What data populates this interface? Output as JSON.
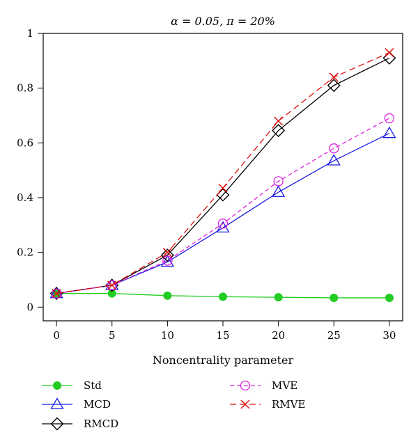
{
  "chart_data": {
    "type": "line",
    "title": "α = 0.05, π = 20%",
    "xlabel": "Noncentrality parameter",
    "ylabel": "",
    "x": [
      0,
      5,
      10,
      15,
      20,
      25,
      30
    ],
    "xlim": [
      -1.2,
      31.2
    ],
    "ylim": [
      -0.05,
      1.0
    ],
    "xticks": [
      "0",
      "5",
      "10",
      "15",
      "20",
      "25",
      "30"
    ],
    "yticks": [
      "0",
      "0.2",
      "0.4",
      "0.6",
      "0.8",
      "1"
    ],
    "grid": false,
    "legend_position": "bottom",
    "series": [
      {
        "name": "Std",
        "color": "#22cc22",
        "dash": "solid",
        "marker": "filled-circle",
        "values": [
          0.05,
          0.05,
          0.042,
          0.038,
          0.036,
          0.034,
          0.034
        ]
      },
      {
        "name": "MCD",
        "color": "#1a1ae6",
        "dash": "solid",
        "marker": "triangle",
        "values": [
          0.05,
          0.08,
          0.165,
          0.29,
          0.42,
          0.535,
          0.635
        ]
      },
      {
        "name": "RMCD",
        "color": "#000000",
        "dash": "solid",
        "marker": "diamond",
        "values": [
          0.05,
          0.08,
          0.19,
          0.41,
          0.645,
          0.81,
          0.91
        ]
      },
      {
        "name": "MVE",
        "color": "#e020e0",
        "dash": "dashed",
        "marker": "circle",
        "values": [
          0.05,
          0.08,
          0.17,
          0.305,
          0.46,
          0.58,
          0.69
        ]
      },
      {
        "name": "RMVE",
        "color": "#e01010",
        "dash": "long-dashed",
        "marker": "x",
        "values": [
          0.05,
          0.08,
          0.2,
          0.435,
          0.68,
          0.84,
          0.93
        ]
      }
    ]
  }
}
